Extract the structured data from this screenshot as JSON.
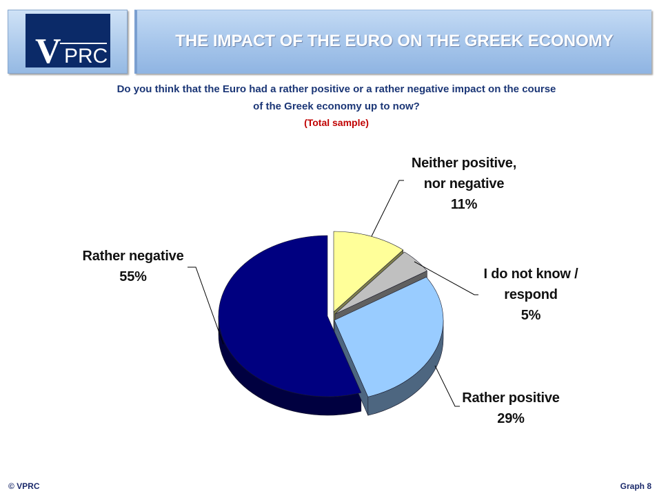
{
  "header": {
    "logo": {
      "v": "V",
      "prc": "PRC"
    },
    "title": "THE IMPACT OF THE EURO ON THE GREEK ECONOMY"
  },
  "question": {
    "line1": "Do you think that the Euro had a rather positive or a rather negative impact on the course",
    "line2": "of the Greek economy up to now?",
    "sample": "(Total sample)"
  },
  "chart_data": {
    "type": "pie",
    "three_d": true,
    "exploded": true,
    "categories": [
      "Neither positive,\nnor negative",
      "I do not know /\nrespond",
      "Rather positive",
      "Rather negative"
    ],
    "values": [
      11,
      5,
      29,
      55
    ],
    "value_labels": [
      "11%",
      "5%",
      "29%",
      "55%"
    ],
    "colors": [
      "#FFFF99",
      "#C0C0C0",
      "#99CCFF",
      "#000080"
    ]
  },
  "colors": {
    "logo_background": "#0B2A68",
    "question_text": "#1B3676",
    "sample_text": "#C00000",
    "label_text": "#111111",
    "footer_text": "#1B2A6B"
  },
  "footer": {
    "copyright": "© VPRC",
    "graph": "Graph 8"
  }
}
